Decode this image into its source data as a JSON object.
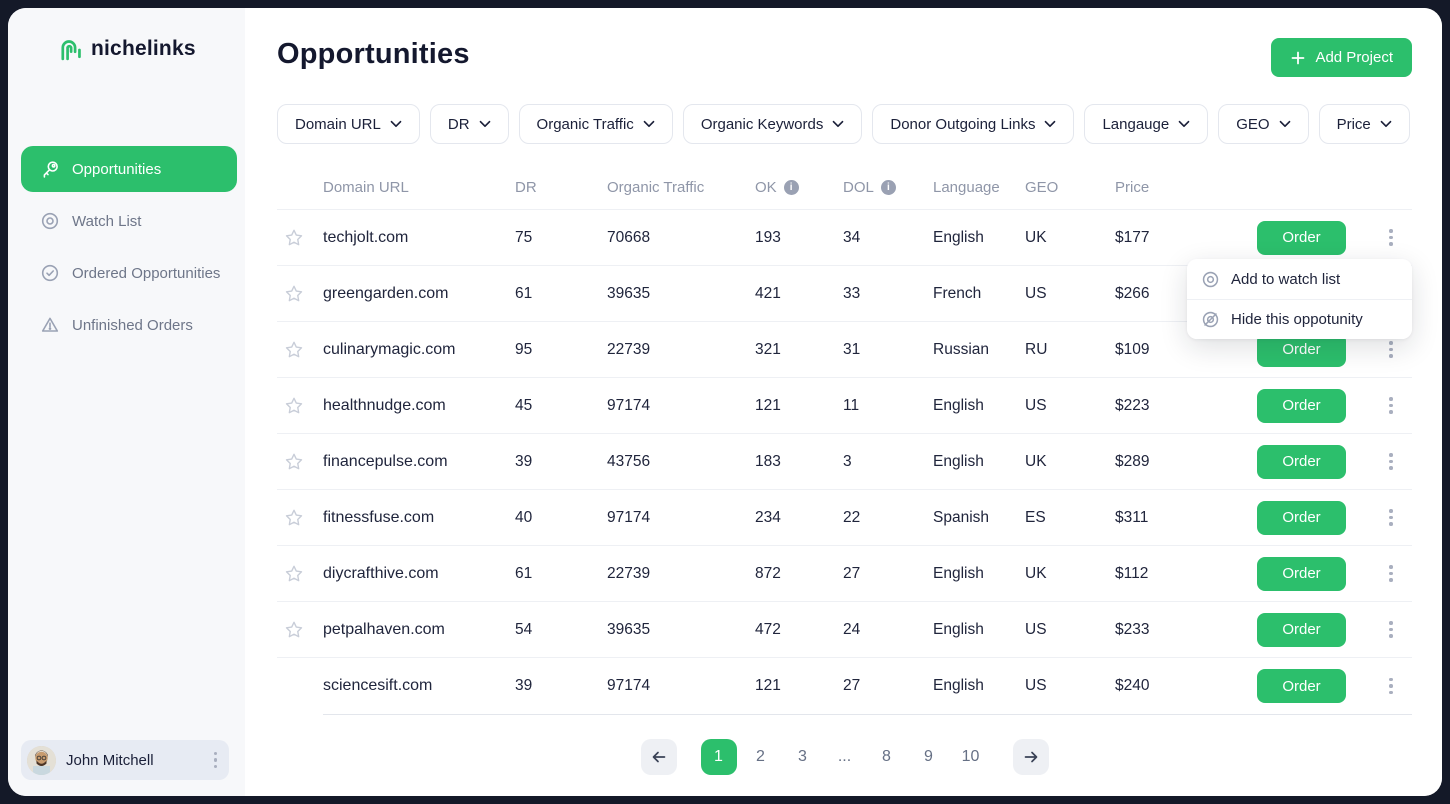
{
  "colors": {
    "accent_green": "#2CBF6C",
    "frame_navy": "#141928",
    "sidebar_bg": "#F7F8FA",
    "muted_gray": "#8F96A8"
  },
  "sidebar": {
    "logo_text": "nichelinks",
    "logo_icon": "paperclip-n-icon",
    "items": [
      {
        "label": "Opportunities",
        "icon": "key-icon",
        "active": true
      },
      {
        "label": "Watch List",
        "icon": "watch-icon",
        "active": false
      },
      {
        "label": "Ordered Opportunities",
        "icon": "check-circle-icon",
        "active": false
      },
      {
        "label": "Unfinished Orders",
        "icon": "warning-triangle-icon",
        "active": false
      }
    ],
    "user": {
      "name": "John Mitchell"
    }
  },
  "header": {
    "title": "Opportunities",
    "add_project_label": "Add Project"
  },
  "filters": [
    {
      "label": "Domain URL"
    },
    {
      "label": "DR"
    },
    {
      "label": "Organic Traffic"
    },
    {
      "label": "Organic Keywords"
    },
    {
      "label": "Donor Outgoing Links"
    },
    {
      "label": "Langauge"
    },
    {
      "label": "GEO"
    },
    {
      "label": "Price"
    }
  ],
  "table": {
    "columns": {
      "domain": "Domain URL",
      "dr": "DR",
      "traffic": "Organic Traffic",
      "ok": "OK",
      "dol": "DOL",
      "language": "Language",
      "geo": "GEO",
      "price": "Price"
    },
    "info_icon_columns": [
      "OK",
      "DOL"
    ],
    "order_label": "Order",
    "rows": [
      {
        "domain": "techjolt.com",
        "dr": "75",
        "traffic": "70668",
        "ok": "193",
        "dol": "34",
        "language": "English",
        "geo": "UK",
        "price": "$177",
        "star": true
      },
      {
        "domain": "greengarden.com",
        "dr": "61",
        "traffic": "39635",
        "ok": "421",
        "dol": "33",
        "language": "French",
        "geo": "US",
        "price": "$266",
        "star": true
      },
      {
        "domain": "culinarymagic.com",
        "dr": "95",
        "traffic": "22739",
        "ok": "321",
        "dol": "31",
        "language": "Russian",
        "geo": "RU",
        "price": "$109",
        "star": true
      },
      {
        "domain": "healthnudge.com",
        "dr": "45",
        "traffic": "97174",
        "ok": "121",
        "dol": "11",
        "language": "English",
        "geo": "US",
        "price": "$223",
        "star": true
      },
      {
        "domain": "financepulse.com",
        "dr": "39",
        "traffic": "43756",
        "ok": "183",
        "dol": "3",
        "language": "English",
        "geo": "UK",
        "price": "$289",
        "star": true
      },
      {
        "domain": "fitnessfuse.com",
        "dr": "40",
        "traffic": "97174",
        "ok": "234",
        "dol": "22",
        "language": "Spanish",
        "geo": "ES",
        "price": "$311",
        "star": true
      },
      {
        "domain": "diycrafthive.com",
        "dr": "61",
        "traffic": "22739",
        "ok": "872",
        "dol": "27",
        "language": "English",
        "geo": "UK",
        "price": "$112",
        "star": true
      },
      {
        "domain": "petpalhaven.com",
        "dr": "54",
        "traffic": "39635",
        "ok": "472",
        "dol": "24",
        "language": "English",
        "geo": "US",
        "price": "$233",
        "star": true
      },
      {
        "domain": "sciencesift.com",
        "dr": "39",
        "traffic": "97174",
        "ok": "121",
        "dol": "27",
        "language": "English",
        "geo": "US",
        "price": "$240",
        "star": false
      }
    ]
  },
  "context_menu": {
    "items": [
      {
        "label": "Add to watch list",
        "icon": "watch-icon"
      },
      {
        "label": "Hide this oppotunity",
        "icon": "eye-off-icon"
      }
    ]
  },
  "pagination": {
    "pages": [
      "1",
      "2",
      "3",
      "...",
      "8",
      "9",
      "10"
    ],
    "active": "1"
  }
}
